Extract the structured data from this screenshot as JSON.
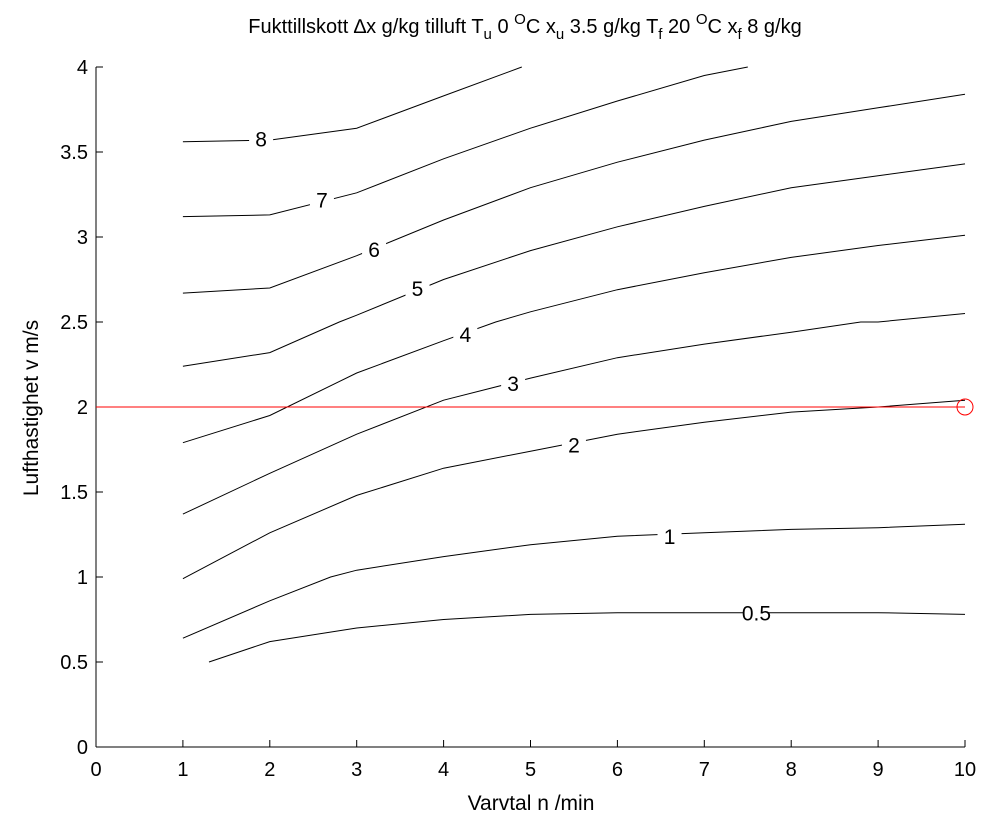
{
  "chart_data": {
    "type": "line",
    "title_parts": {
      "a": "Fukttillskott ",
      "delta": "∆",
      "b": "x  g/kg tilluft  T",
      "sub_u": "u",
      "c": " 0 ",
      "sup_o1": "O",
      "d": "C  x",
      "sub_u2": "u",
      "e": " 3.5 g/kg  T",
      "sub_f": "f",
      "f": " 20 ",
      "sup_o2": "O",
      "g": "C  x",
      "sub_f2": "f",
      "h": " 8 g/kg"
    },
    "xlabel": "Varvtal  n  /min",
    "ylabel": "Lufthastighet  v  m/s",
    "xlim": [
      0,
      10
    ],
    "ylim": [
      0,
      4
    ],
    "xticks": [
      "0",
      "1",
      "2",
      "3",
      "4",
      "5",
      "6",
      "7",
      "8",
      "9",
      "10"
    ],
    "yticks": [
      "0",
      "0.5",
      "1",
      "1.5",
      "2",
      "2.5",
      "3",
      "3.5",
      "4"
    ],
    "grid": false,
    "colors": {
      "curves": "#000000",
      "reference": "#ff0000"
    },
    "series": [
      {
        "name": "0.5",
        "label_at": [
          7.6,
          0.79
        ],
        "points": [
          [
            1.3,
            0.5
          ],
          [
            2,
            0.62
          ],
          [
            3,
            0.7
          ],
          [
            4,
            0.75
          ],
          [
            5,
            0.78
          ],
          [
            6,
            0.79
          ],
          [
            7,
            0.79
          ],
          [
            8,
            0.79
          ],
          [
            9,
            0.79
          ],
          [
            10,
            0.78
          ]
        ]
      },
      {
        "name": "1",
        "label_at": [
          6.6,
          1.24
        ],
        "points": [
          [
            1,
            0.64
          ],
          [
            2,
            0.86
          ],
          [
            2.7,
            1.0
          ],
          [
            3,
            1.04
          ],
          [
            4,
            1.12
          ],
          [
            5,
            1.19
          ],
          [
            6,
            1.24
          ],
          [
            7,
            1.26
          ],
          [
            8,
            1.28
          ],
          [
            9,
            1.29
          ],
          [
            10,
            1.31
          ]
        ]
      },
      {
        "name": "2",
        "label_at": [
          5.5,
          1.78
        ],
        "points": [
          [
            1,
            0.99
          ],
          [
            2,
            1.26
          ],
          [
            3,
            1.48
          ],
          [
            4,
            1.64
          ],
          [
            5,
            1.74
          ],
          [
            6,
            1.84
          ],
          [
            7,
            1.91
          ],
          [
            8,
            1.97
          ],
          [
            9,
            2.0
          ],
          [
            10,
            2.04
          ]
        ]
      },
      {
        "name": "3",
        "label_at": [
          4.8,
          2.14
        ],
        "points": [
          [
            1,
            1.37
          ],
          [
            2,
            1.61
          ],
          [
            3,
            1.84
          ],
          [
            4,
            2.04
          ],
          [
            5,
            2.17
          ],
          [
            6,
            2.29
          ],
          [
            7,
            2.37
          ],
          [
            8,
            2.44
          ],
          [
            8.8,
            2.5
          ],
          [
            9,
            2.5
          ],
          [
            10,
            2.55
          ]
        ]
      },
      {
        "name": "4",
        "label_at": [
          4.25,
          2.43
        ],
        "points": [
          [
            1,
            1.79
          ],
          [
            2,
            1.95
          ],
          [
            3,
            2.2
          ],
          [
            4,
            2.39
          ],
          [
            4.6,
            2.5
          ],
          [
            5,
            2.56
          ],
          [
            6,
            2.69
          ],
          [
            7,
            2.79
          ],
          [
            8,
            2.88
          ],
          [
            9,
            2.95
          ],
          [
            10,
            3.01
          ]
        ]
      },
      {
        "name": "5",
        "label_at": [
          3.7,
          2.7
        ],
        "points": [
          [
            1,
            2.24
          ],
          [
            2,
            2.32
          ],
          [
            2.8,
            2.5
          ],
          [
            3,
            2.54
          ],
          [
            4,
            2.75
          ],
          [
            5,
            2.92
          ],
          [
            6,
            3.06
          ],
          [
            7,
            3.18
          ],
          [
            8,
            3.29
          ],
          [
            9,
            3.36
          ],
          [
            10,
            3.43
          ]
        ]
      },
      {
        "name": "6",
        "label_at": [
          3.2,
          2.93
        ],
        "points": [
          [
            1,
            2.67
          ],
          [
            2,
            2.7
          ],
          [
            3,
            2.89
          ],
          [
            4,
            3.1
          ],
          [
            5,
            3.29
          ],
          [
            6,
            3.44
          ],
          [
            7,
            3.57
          ],
          [
            8,
            3.68
          ],
          [
            9,
            3.76
          ],
          [
            10,
            3.84
          ]
        ]
      },
      {
        "name": "7",
        "label_at": [
          2.6,
          3.22
        ],
        "points": [
          [
            1,
            3.12
          ],
          [
            2,
            3.13
          ],
          [
            3,
            3.26
          ],
          [
            4,
            3.46
          ],
          [
            5,
            3.64
          ],
          [
            6,
            3.8
          ],
          [
            7,
            3.95
          ],
          [
            7.5,
            4.0
          ]
        ]
      },
      {
        "name": "8",
        "label_at": [
          1.9,
          3.58
        ],
        "points": [
          [
            1,
            3.56
          ],
          [
            2,
            3.57
          ],
          [
            3,
            3.64
          ],
          [
            4,
            3.83
          ],
          [
            4.9,
            4.0
          ]
        ]
      }
    ],
    "reference": {
      "y": 2,
      "marker_x": 10
    }
  }
}
